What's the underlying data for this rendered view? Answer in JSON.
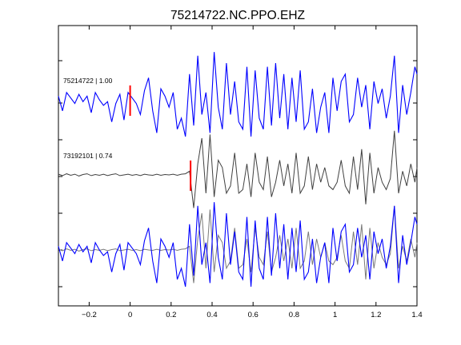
{
  "chart_data": {
    "type": "line",
    "title": "75214722.NC.PPO.EHZ",
    "xlabel": "",
    "ylabel": "",
    "xlim": [
      -0.35,
      1.4
    ],
    "x_ticks": [
      -0.2,
      0,
      0.2,
      0.4,
      0.6,
      0.8,
      1,
      1.2,
      1.4
    ],
    "x_tick_labels": [
      "−0.2",
      "0",
      "0.2",
      "0.4",
      "0.6",
      "0.8",
      "1",
      "1.2",
      "1.4"
    ],
    "grid": false,
    "colors": {
      "master": "#0000ff",
      "match": "#404040",
      "pick": "#ff0000",
      "axes": "#000000"
    },
    "traces": [
      {
        "label": "75214722 | 1.00",
        "event_id": "75214722",
        "cc": 1.0,
        "color": "#0000ff",
        "pick_time": 0.0,
        "x": [
          -0.35,
          -0.33,
          -0.31,
          -0.29,
          -0.27,
          -0.25,
          -0.23,
          -0.21,
          -0.19,
          -0.17,
          -0.15,
          -0.13,
          -0.11,
          -0.09,
          -0.07,
          -0.05,
          -0.03,
          -0.01,
          0.01,
          0.03,
          0.05,
          0.07,
          0.09,
          0.11,
          0.13,
          0.15,
          0.17,
          0.19,
          0.21,
          0.23,
          0.25,
          0.27,
          0.29,
          0.31,
          0.33,
          0.35,
          0.37,
          0.39,
          0.41,
          0.43,
          0.45,
          0.47,
          0.49,
          0.51,
          0.53,
          0.55,
          0.57,
          0.59,
          0.61,
          0.63,
          0.65,
          0.67,
          0.69,
          0.71,
          0.73,
          0.75,
          0.77,
          0.79,
          0.81,
          0.83,
          0.85,
          0.87,
          0.89,
          0.91,
          0.93,
          0.95,
          0.97,
          0.99,
          1.01,
          1.03,
          1.05,
          1.07,
          1.09,
          1.11,
          1.13,
          1.15,
          1.17,
          1.19,
          1.21,
          1.23,
          1.25,
          1.27,
          1.29,
          1.31,
          1.33,
          1.35,
          1.37,
          1.39,
          1.4
        ],
        "y": [
          0.1,
          -0.3,
          0.2,
          0.05,
          -0.1,
          0.15,
          -0.05,
          0.1,
          -0.35,
          0.2,
          0.0,
          -0.15,
          -0.05,
          -0.6,
          -0.1,
          0.15,
          -0.55,
          0.2,
          0.05,
          -0.1,
          -0.4,
          0.25,
          0.6,
          -0.3,
          -0.9,
          0.3,
          0.1,
          -0.2,
          0.2,
          -0.8,
          -0.5,
          -1.0,
          0.7,
          -0.7,
          1.2,
          -0.4,
          0.2,
          -0.9,
          1.3,
          -0.2,
          -0.8,
          1.0,
          -0.4,
          0.5,
          -0.6,
          -0.8,
          0.9,
          -1.0,
          0.8,
          -0.5,
          -0.8,
          0.9,
          -0.7,
          1.0,
          -0.5,
          0.7,
          -0.8,
          0.6,
          -0.6,
          0.8,
          -0.8,
          -0.6,
          0.3,
          -0.9,
          -0.2,
          0.2,
          -0.9,
          0.6,
          -0.3,
          0.5,
          0.7,
          -0.6,
          -0.4,
          0.6,
          -0.2,
          0.4,
          -0.8,
          0.5,
          -0.1,
          0.3,
          -0.5,
          0.1,
          1.2,
          -0.9,
          0.4,
          -0.4,
          0.2,
          0.9,
          0.7
        ]
      },
      {
        "label": "73192101 | 0.74",
        "event_id": "73192101",
        "cc": 0.74,
        "color": "#404040",
        "pick_time": 0.295,
        "x": [
          -0.35,
          -0.33,
          -0.31,
          -0.29,
          -0.27,
          -0.25,
          -0.23,
          -0.21,
          -0.19,
          -0.17,
          -0.15,
          -0.13,
          -0.11,
          -0.09,
          -0.07,
          -0.05,
          -0.03,
          -0.01,
          0.01,
          0.03,
          0.05,
          0.07,
          0.09,
          0.11,
          0.13,
          0.15,
          0.17,
          0.19,
          0.21,
          0.23,
          0.25,
          0.27,
          0.29,
          0.31,
          0.33,
          0.35,
          0.37,
          0.39,
          0.41,
          0.43,
          0.45,
          0.47,
          0.49,
          0.51,
          0.53,
          0.55,
          0.57,
          0.59,
          0.61,
          0.63,
          0.65,
          0.67,
          0.69,
          0.71,
          0.73,
          0.75,
          0.77,
          0.79,
          0.81,
          0.83,
          0.85,
          0.87,
          0.89,
          0.91,
          0.93,
          0.95,
          0.97,
          0.99,
          1.01,
          1.03,
          1.05,
          1.07,
          1.09,
          1.11,
          1.13,
          1.15,
          1.17,
          1.19,
          1.21,
          1.23,
          1.25,
          1.27,
          1.29,
          1.31,
          1.33,
          1.35,
          1.37,
          1.39,
          1.4
        ],
        "y": [
          0.02,
          -0.02,
          0.03,
          -0.01,
          0.02,
          -0.03,
          0.01,
          0.03,
          -0.02,
          0.01,
          -0.01,
          0.02,
          -0.02,
          0.01,
          0.03,
          -0.02,
          0.0,
          0.02,
          -0.01,
          0.01,
          -0.02,
          0.02,
          0.0,
          -0.01,
          0.02,
          -0.01,
          0.01,
          0.0,
          0.02,
          -0.01,
          0.02,
          0.03,
          0.1,
          -0.9,
          0.3,
          1.0,
          -0.5,
          1.1,
          -0.6,
          0.4,
          0.2,
          -0.5,
          -0.3,
          0.6,
          -0.5,
          -0.4,
          0.3,
          -0.6,
          0.6,
          -0.2,
          -0.4,
          0.5,
          -0.6,
          -0.2,
          0.4,
          -0.3,
          0.3,
          -0.5,
          0.6,
          -0.5,
          -0.3,
          0.5,
          -0.4,
          0.3,
          -0.2,
          0.2,
          -0.3,
          -0.4,
          -0.2,
          0.4,
          -0.3,
          -0.5,
          0.5,
          -0.4,
          0.7,
          -0.8,
          0.6,
          -0.5,
          0.2,
          -0.2,
          -0.4,
          -0.1,
          1.2,
          -0.5,
          0.1,
          -0.3,
          0.3,
          -0.2,
          0.2
        ]
      }
    ],
    "overlay": {
      "description_series": [
        "75214722 | 1.00",
        "73192101 | 0.74"
      ]
    }
  }
}
